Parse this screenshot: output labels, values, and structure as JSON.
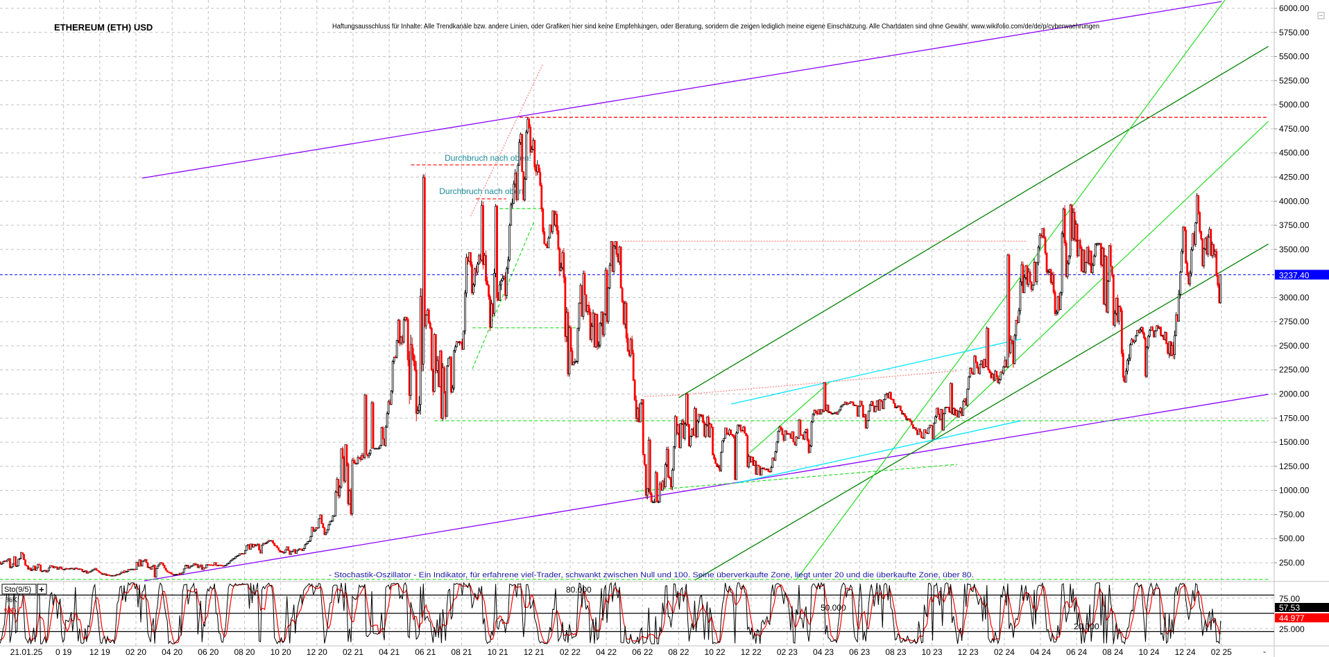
{
  "header": {
    "title": "ETHEREUM (ETH) USD",
    "disclaimer": "Haftungsausschluss für Inhalte: Alle Trendkanäle bzw. andere Linien, oder Grafiken hier sind keine Empfehlungen, oder Beratung, sondern die zeigen lediglich meine eigene Einschätzung. Alle Chartdaten sind ohne Gewähr.  www.wikifolio.com/de/de/p/cyberwaehrungen"
  },
  "colors": {
    "up_candle": "#000000",
    "down_candle": "#ff0000",
    "current_price": "#0000ff",
    "grid": "#c0c0c0",
    "annotation_text": "#1a8a9a",
    "stoch_k": "#000000",
    "stoch_d": "#ff0000",
    "stoch_note": "#1a1aa0"
  },
  "chart_data": [
    {
      "type": "candlestick",
      "title": "ETHEREUM (ETH) USD",
      "ylim": [
        0,
        6000
      ],
      "grid": true,
      "y_ticks": [
        "6000.00",
        "5750.00",
        "5500.00",
        "5250.00",
        "5000.00",
        "4750.00",
        "4500.00",
        "4250.00",
        "4000.00",
        "3750.00",
        "3500.00",
        "3000.00",
        "2750.00",
        "2500.00",
        "2250.00",
        "2000.00",
        "1750.00",
        "1500.00",
        "1250.00",
        "1000.00",
        "750.00",
        "500.00",
        "250.00"
      ],
      "current_price": 3237.4,
      "current_price_label": "3237.40",
      "x_labels": [
        "21.01.25",
        "0 19",
        "12 19",
        "02 20",
        "04 20",
        "06 20",
        "08 20",
        "10 20",
        "12 20",
        "02 21",
        "04 21",
        "06 21",
        "08 21",
        "10 21",
        "12 21",
        "02 22",
        "04 22",
        "06 22",
        "08 22",
        "10 22",
        "12 22",
        "02 23",
        "04 23",
        "06 23",
        "08 23",
        "10 23",
        "12 23",
        "02 24",
        "04 24",
        "06 24",
        "08 24",
        "10 24",
        "12 24",
        "02 25"
      ],
      "monthly_ohlc": [
        [
          "2019-06",
          270,
          362,
          230,
          293
        ],
        [
          "2019-07",
          293,
          365,
          190,
          218
        ],
        [
          "2019-08",
          218,
          239,
          164,
          172
        ],
        [
          "2019-09",
          172,
          224,
          152,
          180
        ],
        [
          "2019-10",
          180,
          198,
          159,
          182
        ],
        [
          "2019-11",
          182,
          195,
          138,
          152
        ],
        [
          "2019-12",
          152,
          154,
          116,
          130
        ],
        [
          "2020-01",
          130,
          184,
          127,
          180
        ],
        [
          "2020-02",
          180,
          288,
          180,
          225
        ],
        [
          "2020-03",
          225,
          253,
          90,
          133
        ],
        [
          "2020-04",
          133,
          227,
          127,
          206
        ],
        [
          "2020-05",
          206,
          244,
          175,
          231
        ],
        [
          "2020-06",
          231,
          254,
          215,
          226
        ],
        [
          "2020-07",
          226,
          347,
          225,
          345
        ],
        [
          "2020-08",
          345,
          445,
          343,
          434
        ],
        [
          "2020-09",
          434,
          488,
          308,
          360
        ],
        [
          "2020-10",
          360,
          420,
          332,
          386
        ],
        [
          "2020-11",
          386,
          623,
          370,
          612
        ],
        [
          "2020-12",
          612,
          755,
          529,
          737
        ],
        [
          "2021-01",
          737,
          1475,
          714,
          1312
        ],
        [
          "2021-02",
          1312,
          2042,
          1274,
          1419
        ],
        [
          "2021-03",
          1419,
          1947,
          1436,
          1919
        ],
        [
          "2021-04",
          1919,
          2797,
          1885,
          2773
        ],
        [
          "2021-05",
          2773,
          4380,
          1718,
          2707
        ],
        [
          "2021-06",
          2707,
          2891,
          1700,
          2275
        ],
        [
          "2021-07",
          2275,
          2550,
          1719,
          2536
        ],
        [
          "2021-08",
          2536,
          3467,
          2450,
          3434
        ],
        [
          "2021-09",
          3434,
          4027,
          2652,
          3001
        ],
        [
          "2021-10",
          3001,
          4460,
          2970,
          4288
        ],
        [
          "2021-11",
          4288,
          4878,
          3977,
          4631
        ],
        [
          "2021-12",
          4631,
          4778,
          3515,
          3683
        ],
        [
          "2022-01",
          3683,
          3900,
          2159,
          2688
        ],
        [
          "2022-02",
          2688,
          3282,
          2300,
          2919
        ],
        [
          "2022-03",
          2919,
          3480,
          2451,
          3282
        ],
        [
          "2022-04",
          3282,
          3582,
          2710,
          2728
        ],
        [
          "2022-05",
          2728,
          2966,
          1709,
          1942
        ],
        [
          "2022-06",
          1942,
          1972,
          880,
          1067
        ],
        [
          "2022-07",
          1067,
          1782,
          1000,
          1679
        ],
        [
          "2022-08",
          1679,
          2030,
          1422,
          1554
        ],
        [
          "2022-09",
          1554,
          1790,
          1220,
          1328
        ],
        [
          "2022-10",
          1328,
          1663,
          1191,
          1572
        ],
        [
          "2022-11",
          1572,
          1680,
          1075,
          1296
        ],
        [
          "2022-12",
          1296,
          1352,
          1158,
          1196
        ],
        [
          "2023-01",
          1196,
          1678,
          1190,
          1585
        ],
        [
          "2023-02",
          1585,
          1742,
          1460,
          1605
        ],
        [
          "2023-03",
          1605,
          1840,
          1370,
          1822
        ],
        [
          "2023-04",
          1822,
          2141,
          1785,
          1868
        ],
        [
          "2023-05",
          1868,
          1925,
          1760,
          1874
        ],
        [
          "2023-06",
          1874,
          1930,
          1626,
          1934
        ],
        [
          "2023-07",
          1934,
          2029,
          1822,
          1856
        ],
        [
          "2023-08",
          1856,
          1880,
          1550,
          1645
        ],
        [
          "2023-09",
          1645,
          1679,
          1531,
          1671
        ],
        [
          "2023-10",
          1671,
          1865,
          1522,
          1815
        ],
        [
          "2023-11",
          1815,
          2135,
          1759,
          2052
        ],
        [
          "2023-12",
          2052,
          2415,
          2030,
          2282
        ],
        [
          "2024-01",
          2282,
          2717,
          2100,
          2283
        ],
        [
          "2024-02",
          2283,
          3520,
          2270,
          3340
        ],
        [
          "2024-03",
          3340,
          4090,
          3050,
          3647
        ],
        [
          "2024-04",
          3647,
          3730,
          2810,
          3010
        ],
        [
          "2024-05",
          3010,
          3977,
          2860,
          3760
        ],
        [
          "2024-06",
          3760,
          3887,
          3240,
          3430
        ],
        [
          "2024-07",
          3430,
          3563,
          2810,
          3230
        ],
        [
          "2024-08",
          3230,
          3280,
          2120,
          2510
        ],
        [
          "2024-09",
          2510,
          2700,
          2150,
          2600
        ],
        [
          "2024-10",
          2600,
          2720,
          2310,
          2520
        ],
        [
          "2024-11",
          2520,
          3740,
          2360,
          3700
        ],
        [
          "2024-12",
          3700,
          4110,
          3100,
          3330
        ],
        [
          "2025-01",
          3330,
          3745,
          2920,
          3237
        ]
      ],
      "trendlines": [
        {
          "name": "upper-channel",
          "from": [
            "2020-02-11",
            4239
          ],
          "to": [
            "2025-02-01",
            6070
          ],
          "color": "#8a00ff",
          "style": "solid"
        },
        {
          "name": "lower-channel",
          "from": [
            "2020-02-15",
            63
          ],
          "to": [
            "2025-04-19",
            1997
          ],
          "color": "#8a00ff",
          "style": "solid"
        },
        {
          "name": "dark-green-upper",
          "from": [
            "2022-08-01",
            1961
          ],
          "to": [
            "2025-04-19",
            5605
          ],
          "color": "#008000",
          "style": "solid"
        },
        {
          "name": "dark-green-lower",
          "from": [
            "2022-08-28",
            70
          ],
          "to": [
            "2025-04-19",
            3556
          ],
          "color": "#008000",
          "style": "solid"
        },
        {
          "name": "light-green-steep",
          "from": [
            "2023-02-16",
            70
          ],
          "to": [
            "2025-02-07",
            6086
          ],
          "color": "#33dd33",
          "style": "solid"
        },
        {
          "name": "light-green-mid",
          "from": [
            "2023-10-01",
            1522
          ],
          "to": [
            "2025-04-19",
            4828
          ],
          "color": "#33dd33",
          "style": "solid"
        },
        {
          "name": "light-green-2023",
          "from": [
            "2022-11-28",
            1386
          ],
          "to": [
            "2023-04-13",
            2133
          ],
          "color": "#33dd33",
          "style": "solid"
        },
        {
          "name": "green-dashed-rise-2021",
          "from": [
            "2021-08-19",
            2262
          ],
          "to": [
            "2021-12-01",
            3786
          ],
          "color": "#22dd22",
          "style": "dashed"
        },
        {
          "name": "green-dashed-2687",
          "from": [
            "2021-08-19",
            2687
          ],
          "to": [
            "2022-02-11",
            2687
          ],
          "color": "#22dd22",
          "style": "dashed"
        },
        {
          "name": "green-dashed-3923",
          "from": [
            "2021-10-04",
            3923
          ],
          "to": [
            "2021-12-16",
            3923
          ],
          "color": "#22dd22",
          "style": "dashed"
        },
        {
          "name": "green-dashed-1723",
          "from": [
            "2021-06-16",
            1723
          ],
          "to": [
            "2025-04-19",
            1723
          ],
          "color": "#22dd22",
          "style": "dashed"
        },
        {
          "name": "green-dashed-77",
          "from": [
            "2019-06-15",
            77
          ],
          "to": [
            "2025-04-19",
            77
          ],
          "color": "#22dd22",
          "style": "dashed"
        },
        {
          "name": "green-dashed-2022-low",
          "from": [
            "2022-05-19",
            990
          ],
          "to": [
            "2023-11-13",
            1270
          ],
          "color": "#22dd22",
          "style": "dashed"
        },
        {
          "name": "red-dashed-4870",
          "from": [
            "2021-11-07",
            4870
          ],
          "to": [
            "2025-04-19",
            4870
          ],
          "color": "#ff0000",
          "style": "dashed"
        },
        {
          "name": "red-dashed-4376",
          "from": [
            "2021-05-07",
            4376
          ],
          "to": [
            "2021-10-28",
            4376
          ],
          "color": "#ff0000",
          "style": "dashed"
        },
        {
          "name": "red-dashed-4024",
          "from": [
            "2021-08-25",
            4024
          ],
          "to": [
            "2021-10-15",
            4024
          ],
          "color": "#ff0000",
          "style": "dashed"
        },
        {
          "name": "pink-dotted-rise-2021",
          "from": [
            "2021-08-16",
            3844
          ],
          "to": [
            "2021-12-16",
            5425
          ],
          "color": "#ff8080",
          "style": "dotted"
        },
        {
          "name": "pink-dotted-3585",
          "from": [
            "2022-04-27",
            3585
          ],
          "to": [
            "2024-03-07",
            3585
          ],
          "color": "#ff8080",
          "style": "dotted"
        },
        {
          "name": "pink-dotted-1975",
          "from": [
            "2022-06-04",
            1975
          ],
          "to": [
            "2022-08-01",
            1990
          ],
          "color": "#ff8080",
          "style": "dotted"
        },
        {
          "name": "pink-dotted-2023",
          "from": [
            "2022-08-01",
            1990
          ],
          "to": [
            "2023-11-13",
            2241
          ],
          "color": "#ff8080",
          "style": "dotted"
        },
        {
          "name": "cyan-upper",
          "from": [
            "2022-10-28",
            1896
          ],
          "to": [
            "2024-02-29",
            2571
          ],
          "color": "#00e5ff",
          "style": "solid"
        },
        {
          "name": "cyan-lower",
          "from": [
            "2022-11-07",
            1077
          ],
          "to": [
            "2024-02-29",
            1723
          ],
          "color": "#00e5ff",
          "style": "solid"
        }
      ],
      "annotations": [
        {
          "text": "Durchbruch nach oben!",
          "at": [
            "2021-07-03",
            4419
          ]
        },
        {
          "text": "Durchbruch nach oben!",
          "at": [
            "2021-06-24",
            4074
          ]
        }
      ]
    },
    {
      "type": "line",
      "indicator": "Sto(9/5)",
      "ylim": [
        0,
        100
      ],
      "series": [
        {
          "name": "%K",
          "color": "#000000",
          "last": "57.53"
        },
        {
          "name": "%D",
          "color": "#ff0000",
          "last": "44.977"
        }
      ],
      "levels": [
        {
          "value": 80,
          "label": "80.000"
        },
        {
          "value": 50,
          "label": "50.000"
        },
        {
          "value": 20,
          "label": "20.000"
        }
      ],
      "y_ticks": [
        "75.00",
        "25.000"
      ],
      "note": "- Stochastik-Oszillator - Ein Indikator, für erfahrene viel-Trader, schwankt zwischen Null und 100. Seine überverkaufte Zone, liegt unter 20 und die überkaufte Zone, über 80."
    }
  ],
  "controls": {
    "add_indicator": "+",
    "collapse_icon": "minus-square-icon",
    "scroll_button": "-"
  }
}
